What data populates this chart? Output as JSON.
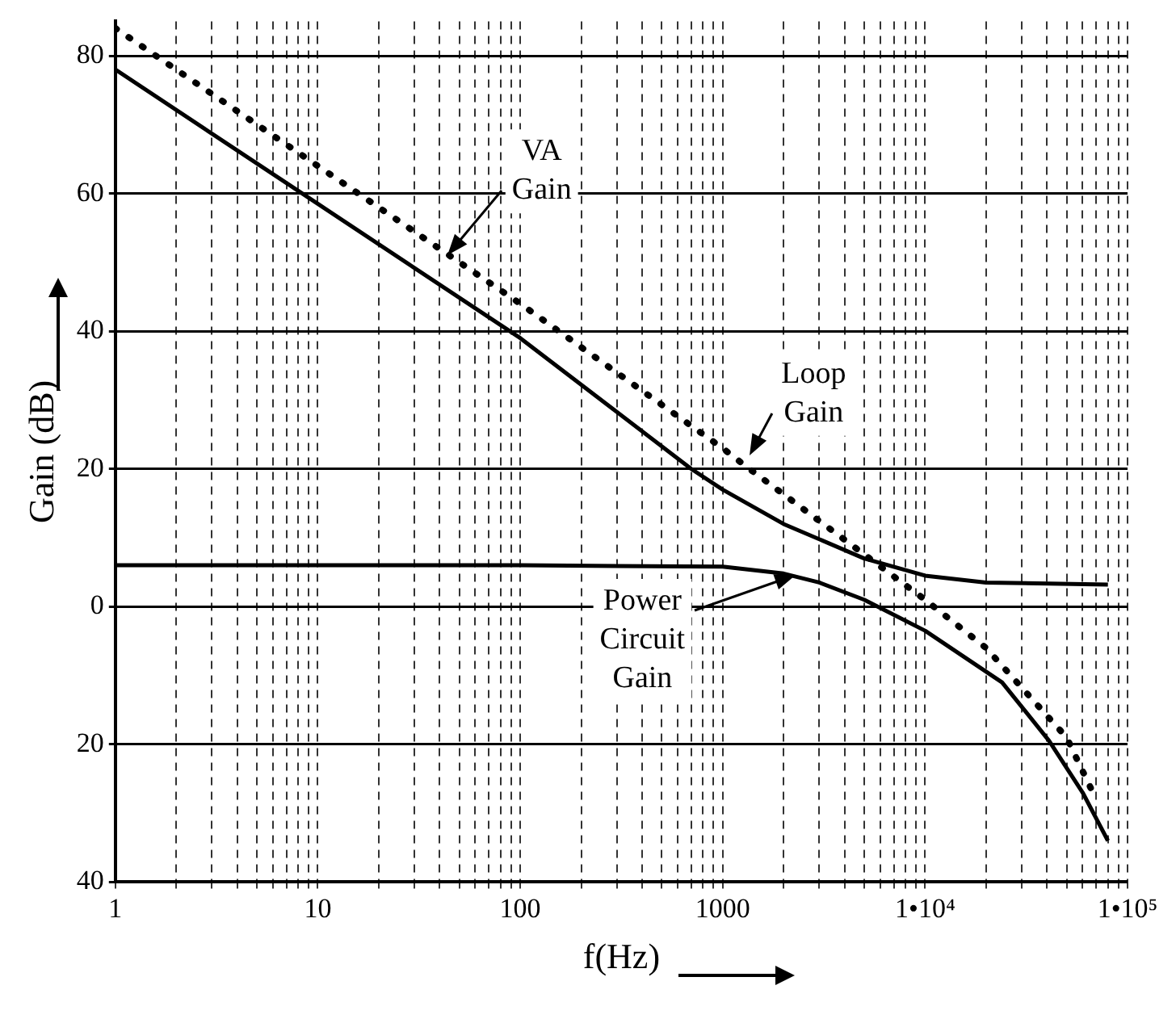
{
  "chart_data": {
    "type": "line",
    "xlabel": "f(Hz)",
    "ylabel": "Gain (dB)",
    "log": "x",
    "xlim": [
      1,
      100000
    ],
    "ylim": [
      -40,
      85
    ],
    "xticks": [
      1,
      {
        "value": 2,
        "label": null
      },
      {
        "value": 3,
        "label": null
      },
      {
        "value": 4,
        "label": null
      },
      {
        "value": 5,
        "label": null
      },
      {
        "value": 6,
        "label": null
      },
      {
        "value": 7,
        "label": null
      },
      {
        "value": 8,
        "label": null
      },
      {
        "value": 9,
        "label": null
      },
      10,
      {
        "value": 20,
        "label": null
      },
      {
        "value": 30,
        "label": null
      },
      {
        "value": 40,
        "label": null
      },
      {
        "value": 50,
        "label": null
      },
      {
        "value": 60,
        "label": null
      },
      {
        "value": 70,
        "label": null
      },
      {
        "value": 80,
        "label": null
      },
      {
        "value": 90,
        "label": null
      },
      100,
      {
        "value": 200,
        "label": null
      },
      {
        "value": 300,
        "label": null
      },
      {
        "value": 400,
        "label": null
      },
      {
        "value": 500,
        "label": null
      },
      {
        "value": 600,
        "label": null
      },
      {
        "value": 700,
        "label": null
      },
      {
        "value": 800,
        "label": null
      },
      {
        "value": 900,
        "label": null
      },
      1000,
      {
        "value": 2000,
        "label": null
      },
      {
        "value": 3000,
        "label": null
      },
      {
        "value": 4000,
        "label": null
      },
      {
        "value": 5000,
        "label": null
      },
      {
        "value": 6000,
        "label": null
      },
      {
        "value": 7000,
        "label": null
      },
      {
        "value": 8000,
        "label": null
      },
      {
        "value": 9000,
        "label": null
      },
      {
        "value": 10000,
        "label": "1•10⁴"
      },
      {
        "value": 20000,
        "label": null
      },
      {
        "value": 30000,
        "label": null
      },
      {
        "value": 40000,
        "label": null
      },
      {
        "value": 50000,
        "label": null
      },
      {
        "value": 60000,
        "label": null
      },
      {
        "value": 70000,
        "label": null
      },
      {
        "value": 80000,
        "label": null
      },
      {
        "value": 90000,
        "label": null
      },
      {
        "value": 100000,
        "label": "1•10⁵"
      }
    ],
    "yticks": [
      {
        "value": -40,
        "label": "40"
      },
      {
        "value": -20,
        "label": "20"
      },
      0,
      20,
      40,
      60,
      80
    ],
    "grid": true,
    "marker": "none",
    "legend": false,
    "series": [
      {
        "color": "#000000",
        "line_style": "solid",
        "x": [
          1,
          10,
          100,
          700,
          1000,
          2000,
          5000,
          10000,
          20000,
          80000
        ],
        "values": [
          78,
          58.5,
          39,
          20,
          17,
          12,
          7,
          4.5,
          3.5,
          3.2
        ]
      },
      {
        "color": "#000000",
        "line_style": "dotted",
        "x": [
          1,
          10,
          100,
          1000,
          1300,
          10000,
          20000,
          50000,
          70000
        ],
        "values": [
          84,
          64,
          44,
          23,
          20.4,
          1,
          -6,
          -19,
          -28
        ]
      },
      {
        "color": "#000000",
        "line_style": "solid",
        "x": [
          1,
          100,
          1000,
          2000,
          3000,
          5000,
          10000,
          24000,
          41000,
          60000,
          80000
        ],
        "values": [
          6,
          6,
          5.8,
          4.8,
          3.5,
          1,
          -3.5,
          -11,
          -19.5,
          -27,
          -34
        ]
      }
    ],
    "annotations": [
      {
        "text": "VA Gain",
        "x": 44,
        "y": 51
      },
      {
        "text": "Loop Gain",
        "x": 1350,
        "y": 22
      },
      {
        "text": "Power Circuit Gain",
        "x": 2300,
        "y": 4.5
      }
    ]
  }
}
